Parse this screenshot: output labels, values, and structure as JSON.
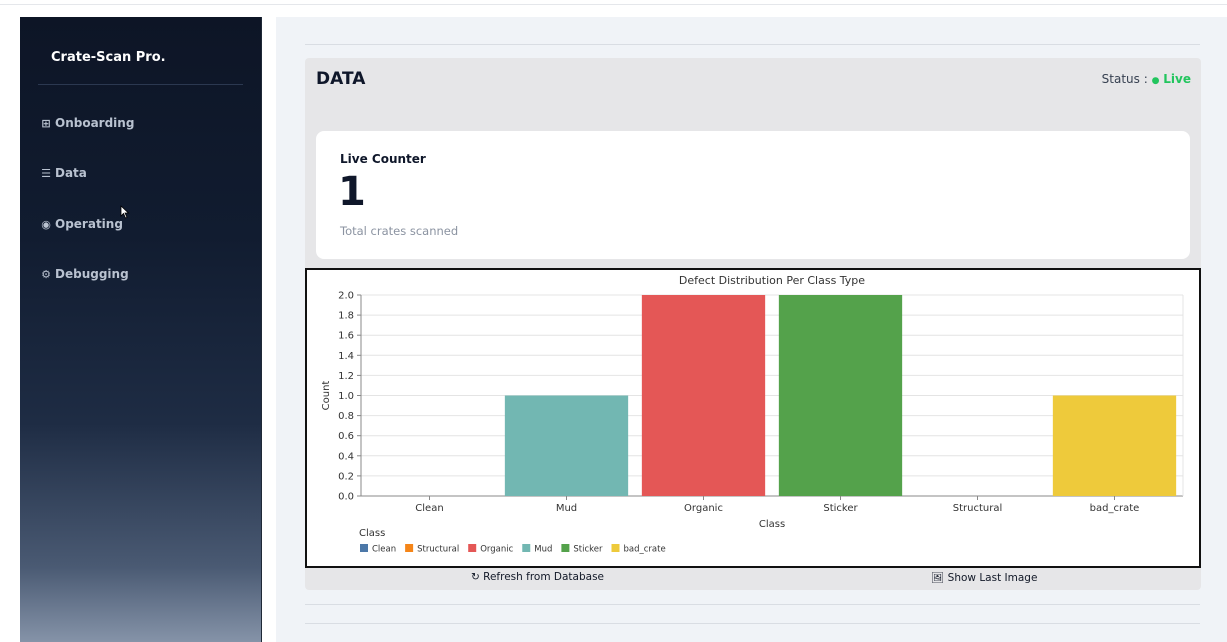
{
  "sidebar": {
    "brand": "Crate-Scan Pro.",
    "items": [
      {
        "icon": "grid-icon",
        "glyph": "⊞",
        "label": "Onboarding"
      },
      {
        "icon": "list-icon",
        "glyph": "☰",
        "label": "Data"
      },
      {
        "icon": "play-circle-icon",
        "glyph": "◉",
        "label": "Operating"
      },
      {
        "icon": "gear-icon",
        "glyph": "⚙",
        "label": "Debugging"
      }
    ]
  },
  "panel": {
    "title": "DATA",
    "status_label": "Status : ",
    "status_dot": "●",
    "status_value": "Live",
    "status_color": "#22c55e"
  },
  "counter": {
    "label": "Live Counter",
    "value": "1",
    "sublabel": "Total crates scanned"
  },
  "buttons": {
    "refresh": "↻ Refresh from Database",
    "show_last": "🖼 Show Last Image"
  },
  "chart_data": {
    "type": "bar",
    "title": "Defect Distribution Per Class Type",
    "xlabel": "Class",
    "ylabel": "Count",
    "categories": [
      "Clean",
      "Mud",
      "Organic",
      "Sticker",
      "Structural",
      "bad_crate"
    ],
    "values": [
      0,
      1,
      2,
      2,
      0,
      1
    ],
    "colors": [
      "#4c78a8",
      "#72b7b2",
      "#e45756",
      "#54a24b",
      "#f58518",
      "#eeca3b"
    ],
    "ylim": [
      0,
      2
    ],
    "yticks": [
      "0.0",
      "0.2",
      "0.4",
      "0.6",
      "0.8",
      "1.0",
      "1.2",
      "1.4",
      "1.6",
      "1.8",
      "2.0"
    ],
    "grid": true,
    "legend": {
      "title": "Class",
      "placement": "bottom-left",
      "entries": [
        {
          "name": "Clean",
          "color": "#4c78a8"
        },
        {
          "name": "Structural",
          "color": "#f58518"
        },
        {
          "name": "Organic",
          "color": "#e45756"
        },
        {
          "name": "Mud",
          "color": "#72b7b2"
        },
        {
          "name": "Sticker",
          "color": "#54a24b"
        },
        {
          "name": "bad_crate",
          "color": "#eeca3b"
        }
      ]
    }
  }
}
